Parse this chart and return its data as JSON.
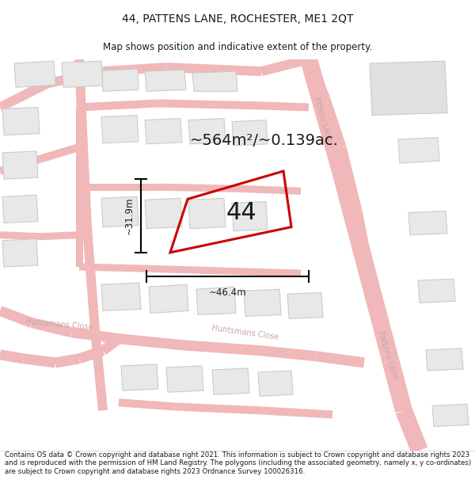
{
  "title": "44, PATTENS LANE, ROCHESTER, ME1 2QT",
  "subtitle": "Map shows position and indicative extent of the property.",
  "area_label": "~564m²/~0.139ac.",
  "number_label": "44",
  "width_label": "~46.4m",
  "height_label": "~31.9m",
  "footer": "Contains OS data © Crown copyright and database right 2021. This information is subject to Crown copyright and database rights 2023 and is reproduced with the permission of HM Land Registry. The polygons (including the associated geometry, namely x, y co-ordinates) are subject to Crown copyright and database rights 2023 Ordnance Survey 100026316.",
  "bg_color": "#ffffff",
  "map_bg": "#f9f9f9",
  "road_color": "#f0b8b8",
  "road_outline": "#e8a0a0",
  "building_color": "#e8e8e8",
  "building_outline": "#cccccc",
  "highlight_color": "#cc0000",
  "text_color": "#1a1a1a",
  "street_label_color": "#c8a8a8",
  "title_fontsize": 10,
  "subtitle_fontsize": 8.5,
  "area_fontsize": 14,
  "number_fontsize": 22,
  "footer_fontsize": 6.2,
  "street_fontsize": 7
}
